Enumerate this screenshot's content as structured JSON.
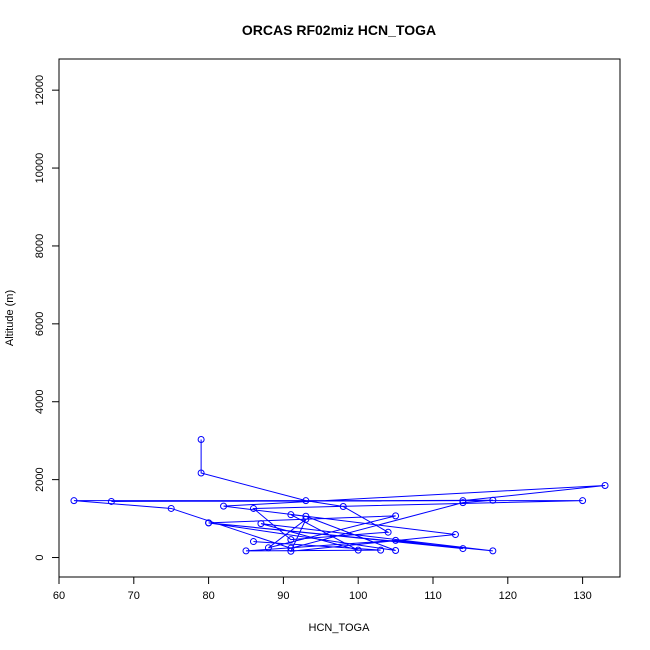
{
  "chart_data": {
    "type": "line",
    "title": "ORCAS RF02miz HCN_TOGA",
    "xlabel": "HCN_TOGA",
    "ylabel": "Altitude (m)",
    "xlim": [
      60,
      135
    ],
    "ylim": [
      -500,
      12800
    ],
    "xticks": [
      60,
      70,
      80,
      90,
      100,
      110,
      120,
      130
    ],
    "yticks": [
      0,
      2000,
      4000,
      6000,
      8000,
      10000,
      12000
    ],
    "grid": false,
    "markers": "open-circle",
    "series": [
      {
        "color": "#0000ff",
        "points": [
          {
            "x": 79,
            "y": 3030
          },
          {
            "x": 79,
            "y": 2170
          },
          {
            "x": 93,
            "y": 1460
          },
          {
            "x": 98,
            "y": 1310
          },
          {
            "x": 104,
            "y": 650
          },
          {
            "x": 91,
            "y": 460
          },
          {
            "x": 86,
            "y": 1260
          },
          {
            "x": 130,
            "y": 1460
          },
          {
            "x": 62,
            "y": 1460
          },
          {
            "x": 75,
            "y": 1260
          },
          {
            "x": 91,
            "y": 240
          },
          {
            "x": 114,
            "y": 1410
          },
          {
            "x": 118,
            "y": 1470
          },
          {
            "x": 67,
            "y": 1440
          },
          {
            "x": 114,
            "y": 1460
          },
          {
            "x": 133,
            "y": 1850
          },
          {
            "x": 82,
            "y": 1320
          },
          {
            "x": 113,
            "y": 590
          },
          {
            "x": 91,
            "y": 160
          },
          {
            "x": 93,
            "y": 980
          },
          {
            "x": 88,
            "y": 250
          },
          {
            "x": 105,
            "y": 1070
          },
          {
            "x": 80,
            "y": 890
          },
          {
            "x": 105,
            "y": 180
          },
          {
            "x": 93,
            "y": 1060
          },
          {
            "x": 91,
            "y": 1100
          },
          {
            "x": 100,
            "y": 190
          },
          {
            "x": 87,
            "y": 870
          },
          {
            "x": 118,
            "y": 170
          },
          {
            "x": 80,
            "y": 890
          },
          {
            "x": 114,
            "y": 230
          },
          {
            "x": 105,
            "y": 440
          },
          {
            "x": 85,
            "y": 170
          },
          {
            "x": 103,
            "y": 190
          },
          {
            "x": 86,
            "y": 410
          }
        ]
      }
    ]
  }
}
